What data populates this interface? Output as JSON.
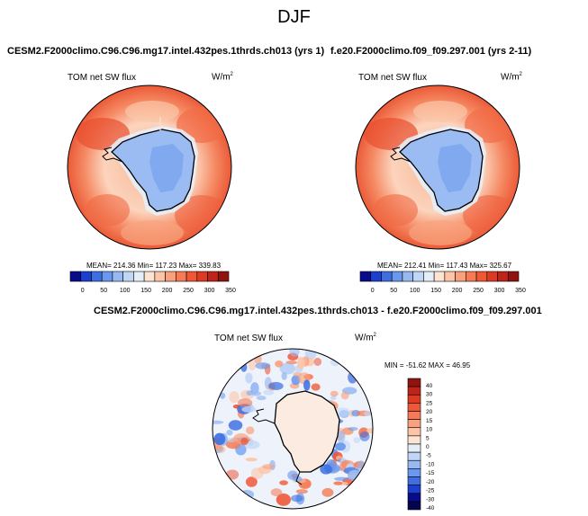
{
  "title": "DJF",
  "panels": [
    {
      "case": "CESM2.F2000climo.C96.C96.mg17.intel.432pes.1thrds.ch013 (yrs 1)",
      "variable": "TOM net SW flux",
      "units_base": "W/m",
      "units_exp": "2",
      "stats": "MEAN= 214.36   Min= 117.23   Max= 339.83",
      "colorbar": {
        "ticks": [
          "0",
          "50",
          "100",
          "150",
          "200",
          "250",
          "300",
          "350"
        ],
        "colors": [
          "#0a0a8c",
          "#1c3fd0",
          "#3d6fe0",
          "#6a98ee",
          "#97b9f2",
          "#c1d6f7",
          "#e4eef9",
          "#fde3d2",
          "#fcc5a8",
          "#f9a07c",
          "#f57a55",
          "#ef5737",
          "#dd3a23",
          "#c0231a",
          "#8f1410"
        ]
      }
    },
    {
      "case": "f.e20.F2000climo.f09_f09.297.001 (yrs 2-11)",
      "variable": "TOM net SW flux",
      "units_base": "W/m",
      "units_exp": "2",
      "stats": "MEAN= 212.41   Min= 117.43   Max= 325.67",
      "colorbar": {
        "ticks": [
          "0",
          "50",
          "100",
          "150",
          "200",
          "250",
          "300",
          "350"
        ],
        "colors": [
          "#0a0a8c",
          "#1c3fd0",
          "#3d6fe0",
          "#6a98ee",
          "#97b9f2",
          "#c1d6f7",
          "#e4eef9",
          "#fde3d2",
          "#fcc5a8",
          "#f9a07c",
          "#f57a55",
          "#ef5737",
          "#dd3a23",
          "#c0231a",
          "#8f1410"
        ]
      }
    }
  ],
  "diff": {
    "case": "CESM2.F2000climo.C96.C96.mg17.intel.432pes.1thrds.ch013 - f.e20.F2000climo.f09_f09.297.001",
    "variable": "TOM net SW flux",
    "units_base": "W/m",
    "units_exp": "2",
    "stats": "MIN = -51.62 MAX =  46.95",
    "colorbar": {
      "ticks": [
        "40",
        "30",
        "25",
        "20",
        "15",
        "10",
        "5",
        "0",
        "-5",
        "-10",
        "-15",
        "-20",
        "-25",
        "-30",
        "-40"
      ],
      "colors": [
        "#8f1410",
        "#c0231a",
        "#dd3a23",
        "#ef5737",
        "#f57a55",
        "#f9a07c",
        "#fcc5a8",
        "#fde3d2",
        "#e4eef9",
        "#c1d6f7",
        "#97b9f2",
        "#6a98ee",
        "#3d6fe0",
        "#1c3fd0",
        "#0a0a8c",
        "#05054f"
      ]
    }
  }
}
